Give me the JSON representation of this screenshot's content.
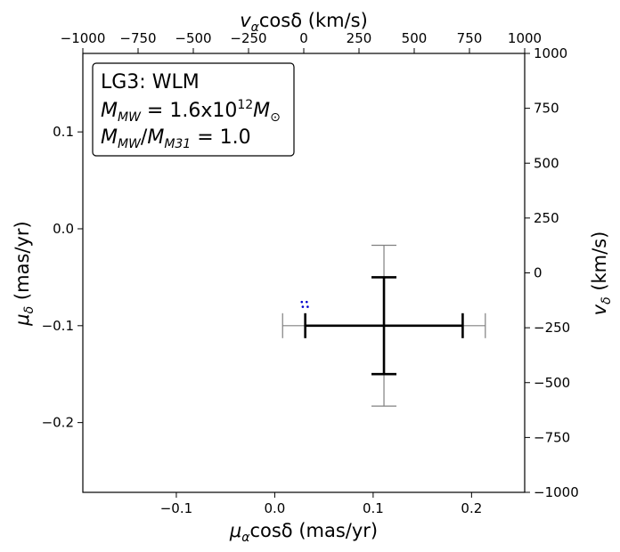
{
  "chart_data": {
    "type": "scatter",
    "title": "",
    "annotation": {
      "line1": "LG3: WLM",
      "line2": {
        "m": "M",
        "sub_mw": "MW",
        "eq": " = 1.6x10",
        "sup": "12",
        "m2": "M",
        "sun": "⊙"
      },
      "line3": {
        "m": "M",
        "sub_mw": "MW",
        "slash": "/",
        "m31": "M",
        "sub_m31": "M31",
        "eq": " = 1.0"
      }
    },
    "xlabel": {
      "mu": "μ",
      "sub": "α",
      "rest": "cosδ (mas/yr)"
    },
    "ylabel": {
      "mu": "μ",
      "sub": "δ",
      "rest": " (mas/yr)"
    },
    "top_xlabel": {
      "v": "v",
      "sub": "α",
      "rest": "cosδ (km/s)"
    },
    "right_ylabel": {
      "v": "v",
      "sub": "δ",
      "rest": " (km/s)"
    },
    "xlim": [
      -0.195,
      0.254
    ],
    "ylim": [
      -0.272,
      0.181
    ],
    "x_ticks": [
      -0.1,
      0.0,
      0.1,
      0.2
    ],
    "x_tick_labels": [
      "−0.1",
      "0.0",
      "0.1",
      "0.2"
    ],
    "y_ticks": [
      -0.2,
      -0.1,
      0.0,
      0.1
    ],
    "y_tick_labels": [
      "−0.2",
      "−0.1",
      "0.0",
      "0.1"
    ],
    "top_xlim": [
      -1000,
      1000
    ],
    "top_x_ticks": [
      -1000,
      -750,
      -500,
      -250,
      0,
      250,
      500,
      750,
      1000
    ],
    "top_x_tick_labels": [
      "−1000",
      "−750",
      "−500",
      "−250",
      "0",
      "250",
      "500",
      "750",
      "1000"
    ],
    "right_ylim": [
      -1000,
      1000
    ],
    "right_y_ticks": [
      -1000,
      -750,
      -500,
      -250,
      0,
      250,
      500,
      750,
      1000
    ],
    "right_y_tick_labels": [
      "−1000",
      "−750",
      "−500",
      "−250",
      "0",
      "250",
      "500",
      "750",
      "1000"
    ],
    "measurement": {
      "x": 0.111,
      "y": -0.1,
      "xerr": 0.08,
      "yerr": 0.05,
      "xerr_outer": 0.103,
      "yerr_outer": 0.083
    },
    "points": [
      {
        "x": 0.0275,
        "y": -0.0755
      },
      {
        "x": 0.0325,
        "y": -0.0755
      },
      {
        "x": 0.0285,
        "y": -0.0805
      },
      {
        "x": 0.0335,
        "y": -0.0805
      }
    ],
    "colors": {
      "inner_error": "#000000",
      "outer_error": "#808080",
      "points": "#0000cc"
    }
  }
}
